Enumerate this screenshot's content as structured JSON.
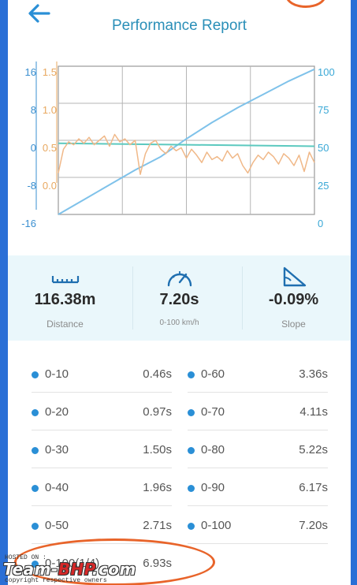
{
  "header": {
    "title": "Performance Report",
    "back_icon": "arrow-left-icon"
  },
  "chart_data": {
    "type": "line",
    "title": "",
    "left_axis_1": {
      "ticks": [
        "16",
        "8",
        "0",
        "-8",
        "-16"
      ],
      "color": "#3a8fd0"
    },
    "left_axis_2": {
      "ticks": [
        "1.5",
        "1.0",
        "0.5",
        "0.0"
      ],
      "color": "#e8a860"
    },
    "right_axis": {
      "ticks": [
        "100",
        "75",
        "50",
        "25",
        "0"
      ],
      "range": [
        0,
        100
      ],
      "color": "#3aa8d6"
    },
    "x_range": [
      0,
      100
    ],
    "grid": true,
    "series": [
      {
        "color": "#7fc2ea",
        "x": [
          0,
          10,
          20,
          30,
          40,
          50,
          60,
          70,
          80,
          90,
          100
        ],
        "y": [
          0,
          10,
          20,
          30,
          39,
          51,
          62,
          72,
          81,
          90,
          98
        ]
      },
      {
        "color": "#5cc9bf",
        "x": [
          0,
          50,
          100
        ],
        "y": [
          48,
          47,
          46
        ]
      },
      {
        "color": "#f0b888",
        "x": [
          0,
          2,
          4,
          6,
          8,
          10,
          12,
          14,
          16,
          18,
          20,
          22,
          24,
          26,
          28,
          30,
          32,
          34,
          36,
          38,
          40,
          42,
          44,
          46,
          48,
          50,
          52,
          54,
          56,
          58,
          60,
          62,
          64,
          66,
          68,
          70,
          72,
          74,
          76,
          78,
          80,
          82,
          84,
          86,
          88,
          90,
          92,
          94,
          96,
          98,
          100
        ],
        "y": [
          28,
          44,
          49,
          47,
          51,
          48,
          52,
          47,
          50,
          53,
          46,
          54,
          49,
          51,
          47,
          50,
          27,
          41,
          48,
          50,
          44,
          41,
          46,
          43,
          45,
          38,
          44,
          40,
          35,
          42,
          37,
          39,
          36,
          43,
          38,
          41,
          33,
          28,
          35,
          40,
          37,
          42,
          39,
          34,
          41,
          38,
          33,
          40,
          29,
          42,
          35
        ]
      }
    ]
  },
  "stats": [
    {
      "icon": "ruler-icon",
      "value": "116.38m",
      "label": "Distance"
    },
    {
      "icon": "speedometer-icon",
      "value": "7.20s",
      "label": "0-100 km/h"
    },
    {
      "icon": "slope-icon",
      "value": "-0.09%",
      "label": "Slope"
    }
  ],
  "splits": {
    "left": [
      {
        "name": "0-10",
        "time": "0.46s"
      },
      {
        "name": "0-20",
        "time": "0.97s"
      },
      {
        "name": "0-30",
        "time": "1.50s"
      },
      {
        "name": "0-40",
        "time": "1.96s"
      },
      {
        "name": "0-50",
        "time": "2.71s"
      },
      {
        "name": "0-100(1/4)",
        "time": "6.93s"
      }
    ],
    "right": [
      {
        "name": "0-60",
        "time": "3.36s"
      },
      {
        "name": "0-70",
        "time": "4.11s"
      },
      {
        "name": "0-80",
        "time": "5.22s"
      },
      {
        "name": "0-90",
        "time": "6.17s"
      },
      {
        "name": "0-100",
        "time": "7.20s"
      }
    ]
  },
  "watermark": {
    "hosted": "HOSTED ON :",
    "brand_a": "Team-",
    "brand_b": "BHP",
    "brand_c": ".com",
    "copyright": "copyright respective owners"
  },
  "colors": {
    "accent": "#2a8fb8",
    "frame": "#2a6fd6",
    "dot": "#2a8fd6"
  }
}
